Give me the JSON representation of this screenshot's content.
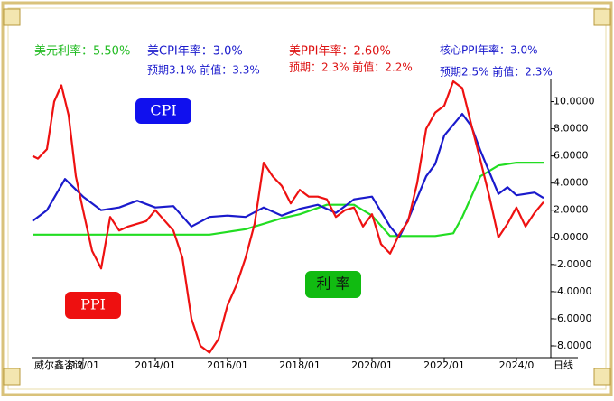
{
  "chart_data": {
    "type": "line",
    "header": {
      "rate": "美元利率：5.50%",
      "cpi": "美CPI年率：3.0%",
      "cpi_sub": "预期3.1% 前值：3.3%",
      "ppi": "美PPI年率：2.60%",
      "ppi_sub": "预期：2.3% 前值：2.2%",
      "core": "核心PPI年率：3.0%",
      "core_sub": "预期2.5% 前值：2.3%"
    },
    "labels": {
      "cpi": "CPI",
      "ppi": "PPI",
      "rate": "利 率"
    },
    "source": "威尔鑫咨询",
    "period": "日线",
    "xlim": [
      2010.575,
      2024.95
    ],
    "xticks": [
      {
        "value": 2012,
        "label": ")12/01"
      },
      {
        "value": 2014,
        "label": "2014/01"
      },
      {
        "value": 2016,
        "label": "2016/01"
      },
      {
        "value": 2018,
        "label": "2018/01"
      },
      {
        "value": 2020,
        "label": "2020/01"
      },
      {
        "value": 2022,
        "label": "2022/01"
      },
      {
        "value": 2024,
        "label": "2024/0"
      }
    ],
    "ylim": [
      -8.8,
      11.5
    ],
    "yticks": [
      {
        "value": -8,
        "label": "-8.0000"
      },
      {
        "value": -6,
        "label": "-6.0000"
      },
      {
        "value": -4,
        "label": "-4.0000"
      },
      {
        "value": -2,
        "label": "-2.0000"
      },
      {
        "value": 0,
        "label": "0.0000"
      },
      {
        "value": 2,
        "label": "2.0000"
      },
      {
        "value": 4,
        "label": "4.0000"
      },
      {
        "value": 6,
        "label": "6.0000"
      },
      {
        "value": 8,
        "label": "8.0000"
      },
      {
        "value": 10,
        "label": "10.0000"
      }
    ],
    "series": [
      {
        "name": "利率",
        "color": "#22dd22",
        "x": [
          2010.6,
          2015.5,
          2016,
          2016.5,
          2017,
          2017.5,
          2018,
          2018.75,
          2019.5,
          2020,
          2020.5,
          2021.75,
          2022.25,
          2022.5,
          2022.75,
          2023,
          2023.5,
          2024,
          2024.75
        ],
        "values": [
          0.2,
          0.2,
          0.4,
          0.6,
          1.0,
          1.4,
          1.7,
          2.4,
          2.4,
          1.6,
          0.1,
          0.1,
          0.3,
          1.5,
          3.0,
          4.5,
          5.3,
          5.5,
          5.5
        ]
      },
      {
        "name": "CPI",
        "color": "#1a1acc",
        "x": [
          2010.6,
          2011,
          2011.5,
          2012,
          2012.5,
          2013,
          2013.5,
          2014,
          2014.5,
          2015,
          2015.5,
          2016,
          2016.5,
          2017,
          2017.5,
          2018,
          2018.5,
          2019,
          2019.5,
          2020,
          2020.5,
          2020.75,
          2021,
          2021.5,
          2021.75,
          2022,
          2022.5,
          2022.75,
          2023,
          2023.5,
          2023.75,
          2024,
          2024.5,
          2024.75
        ],
        "values": [
          1.2,
          2.0,
          4.3,
          3.0,
          2.0,
          2.2,
          2.7,
          2.2,
          2.3,
          0.8,
          1.5,
          1.6,
          1.5,
          2.2,
          1.6,
          2.1,
          2.4,
          1.8,
          2.8,
          3.0,
          0.8,
          0.0,
          1.3,
          4.5,
          5.4,
          7.5,
          9.1,
          8.2,
          6.4,
          3.2,
          3.7,
          3.1,
          3.3,
          2.9
        ]
      },
      {
        "name": "PPI",
        "color": "#ee1111",
        "x": [
          2010.6,
          2010.75,
          2011,
          2011.2,
          2011.4,
          2011.6,
          2011.8,
          2012,
          2012.25,
          2012.5,
          2012.75,
          2013,
          2013.25,
          2013.5,
          2013.75,
          2014,
          2014.5,
          2014.75,
          2015,
          2015.25,
          2015.5,
          2015.75,
          2016,
          2016.25,
          2016.5,
          2016.75,
          2017,
          2017.25,
          2017.5,
          2017.75,
          2018,
          2018.25,
          2018.5,
          2018.75,
          2019,
          2019.25,
          2019.5,
          2019.75,
          2020,
          2020.25,
          2020.5,
          2020.75,
          2021,
          2021.25,
          2021.5,
          2021.75,
          2022,
          2022.25,
          2022.5,
          2022.75,
          2023,
          2023.25,
          2023.5,
          2023.75,
          2024,
          2024.25,
          2024.5,
          2024.75
        ],
        "values": [
          6.0,
          5.8,
          6.5,
          10.0,
          11.2,
          9.0,
          4.5,
          2.0,
          -1.0,
          -2.3,
          1.5,
          0.5,
          0.8,
          1.0,
          1.2,
          2.0,
          0.5,
          -1.5,
          -6.0,
          -8.0,
          -8.5,
          -7.5,
          -5.0,
          -3.5,
          -1.5,
          1.0,
          5.5,
          4.5,
          3.8,
          2.5,
          3.5,
          3.0,
          3.0,
          2.8,
          1.5,
          2.0,
          2.2,
          0.8,
          1.7,
          -0.5,
          -1.2,
          0.2,
          1.2,
          4.0,
          8.0,
          9.2,
          9.7,
          11.5,
          11.0,
          8.3,
          5.7,
          3.0,
          0.0,
          1.0,
          2.2,
          0.8,
          1.8,
          2.6
        ]
      }
    ]
  }
}
